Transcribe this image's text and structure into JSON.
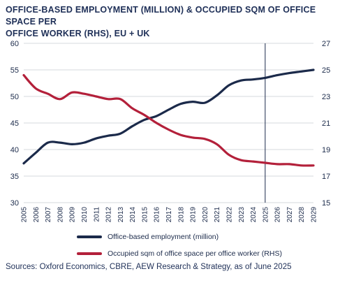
{
  "chart_data": {
    "type": "line",
    "title_lines": [
      "OFFICE-BASED EMPLOYMENT (MILLION) & OCCUPIED SQM OF OFFICE SPACE PER",
      "OFFICE WORKER (RHS), EU + UK"
    ],
    "x": [
      "2005",
      "2006",
      "2007",
      "2008",
      "2009",
      "2010",
      "2011",
      "2012",
      "2013",
      "2014",
      "2015",
      "2016",
      "2017",
      "2018",
      "2019",
      "2020",
      "2021",
      "2022",
      "2023",
      "2024",
      "2025",
      "2026",
      "2027",
      "2028",
      "2029"
    ],
    "y_left_ticks": [
      "30",
      "35",
      "40",
      "45",
      "50",
      "55",
      "60"
    ],
    "y_right_ticks": [
      "15",
      "17",
      "19",
      "21",
      "23",
      "25",
      "27"
    ],
    "ylim_left": [
      30,
      60
    ],
    "ylim_right": [
      15,
      27
    ],
    "vertical_marker": "2025",
    "series": [
      {
        "name": "Office-based employment (million)",
        "axis": "left",
        "color": "#1b2a4a",
        "values": [
          37.4,
          39.4,
          41.3,
          41.3,
          41.0,
          41.3,
          42.1,
          42.6,
          43.0,
          44.4,
          45.6,
          46.3,
          47.5,
          48.6,
          49.0,
          48.8,
          50.2,
          52.1,
          53.0,
          53.2,
          53.5,
          54.0,
          54.4,
          54.7,
          55.0
        ]
      },
      {
        "name": "Occupied sqm of office space per office worker (RHS)",
        "axis": "right",
        "color": "#b3203a",
        "values": [
          24.6,
          23.6,
          23.2,
          22.8,
          23.3,
          23.2,
          23.0,
          22.8,
          22.8,
          22.1,
          21.6,
          21.0,
          20.5,
          20.1,
          19.9,
          19.8,
          19.4,
          18.6,
          18.2,
          18.1,
          18.0,
          17.9,
          17.9,
          17.8,
          17.8
        ]
      }
    ],
    "grid": "horizontal",
    "legend_position": "bottom"
  },
  "source": "Sources: Oxford Economics, CBRE, AEW Research & Strategy, as of June 2025"
}
